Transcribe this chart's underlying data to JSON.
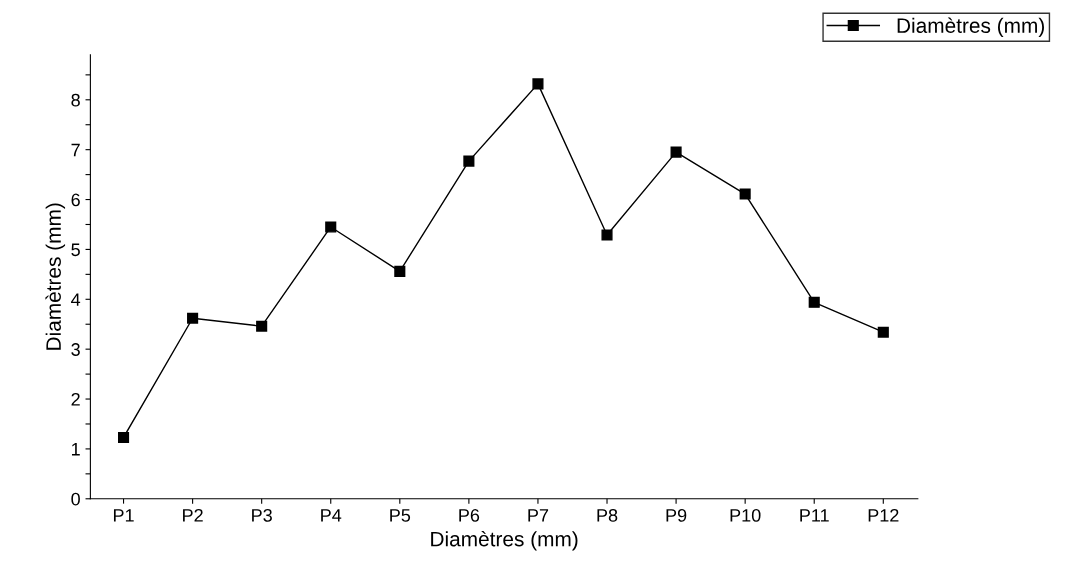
{
  "chart_data": {
    "type": "line",
    "xlabel": "Diamètres (mm)",
    "ylabel": "Diamètres (mm)",
    "categories": [
      "P1",
      "P2",
      "P3",
      "P4",
      "P5",
      "P6",
      "P7",
      "P8",
      "P9",
      "P10",
      "P11",
      "P12"
    ],
    "series": [
      {
        "name": "Diamètres (mm)",
        "color": "#000000",
        "values": [
          1.23,
          3.62,
          3.46,
          5.45,
          4.56,
          6.77,
          8.32,
          5.29,
          6.95,
          6.11,
          3.94,
          3.34
        ]
      }
    ],
    "ylim": [
      0,
      8.9
    ],
    "yticks": [
      0,
      {
        "value": 0.5,
        "label": null
      },
      1,
      {
        "value": 1.5,
        "label": null
      },
      2,
      {
        "value": 2.5,
        "label": null
      },
      3,
      {
        "value": 3.5,
        "label": null
      },
      4,
      {
        "value": 4.5,
        "label": null
      },
      5,
      {
        "value": 5.5,
        "label": null
      },
      6,
      {
        "value": 6.5,
        "label": null
      },
      7,
      {
        "value": 7.5,
        "label": null
      },
      8,
      {
        "value": 8.5,
        "label": null
      }
    ],
    "marker": "square",
    "line_style": "solid",
    "legend": "top right",
    "grid": false
  }
}
